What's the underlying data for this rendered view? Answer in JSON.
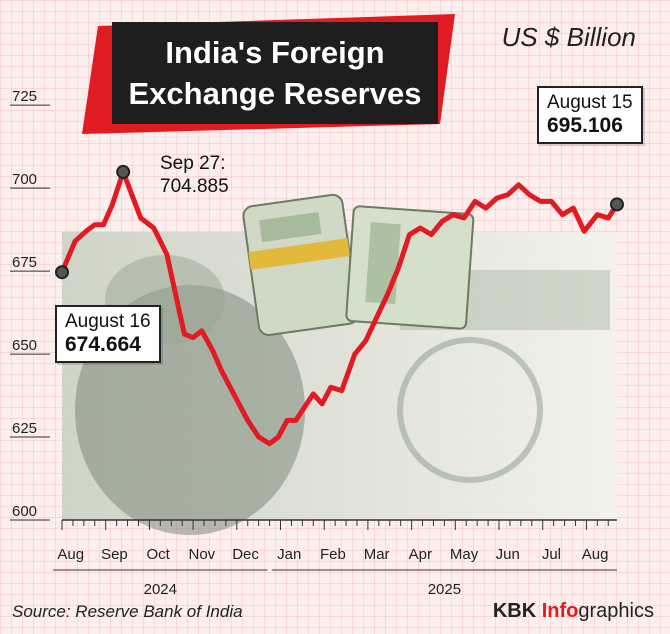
{
  "chart_data": {
    "type": "line",
    "title": "India's Foreign Exchange Reserves",
    "unit": "US $ Billion",
    "ylim": [
      600,
      735
    ],
    "yticks": [
      600,
      625,
      650,
      675,
      700,
      725
    ],
    "months": [
      "Aug",
      "Sep",
      "Oct",
      "Nov",
      "Dec",
      "Jan",
      "Feb",
      "Mar",
      "Apr",
      "May",
      "Jun",
      "Jul",
      "Aug"
    ],
    "years": [
      {
        "label": "2024",
        "month_start": 0,
        "month_end": 4
      },
      {
        "label": "2025",
        "month_start": 5,
        "month_end": 12
      }
    ],
    "series": [
      {
        "color": "#e11b22",
        "points": [
          {
            "x": 0.0,
            "y": 674.664
          },
          {
            "x": 0.3,
            "y": 684
          },
          {
            "x": 0.55,
            "y": 687
          },
          {
            "x": 0.75,
            "y": 689
          },
          {
            "x": 0.95,
            "y": 689
          },
          {
            "x": 1.15,
            "y": 695
          },
          {
            "x": 1.4,
            "y": 704.885
          },
          {
            "x": 1.6,
            "y": 698
          },
          {
            "x": 1.8,
            "y": 691
          },
          {
            "x": 2.1,
            "y": 688
          },
          {
            "x": 2.4,
            "y": 680
          },
          {
            "x": 2.6,
            "y": 668
          },
          {
            "x": 2.8,
            "y": 656
          },
          {
            "x": 3.0,
            "y": 655
          },
          {
            "x": 3.2,
            "y": 657
          },
          {
            "x": 3.45,
            "y": 651
          },
          {
            "x": 3.65,
            "y": 645
          },
          {
            "x": 3.85,
            "y": 640
          },
          {
            "x": 4.05,
            "y": 635
          },
          {
            "x": 4.25,
            "y": 630
          },
          {
            "x": 4.5,
            "y": 625
          },
          {
            "x": 4.75,
            "y": 623
          },
          {
            "x": 4.95,
            "y": 625
          },
          {
            "x": 5.15,
            "y": 630
          },
          {
            "x": 5.35,
            "y": 630
          },
          {
            "x": 5.55,
            "y": 634
          },
          {
            "x": 5.75,
            "y": 638
          },
          {
            "x": 5.95,
            "y": 635
          },
          {
            "x": 6.15,
            "y": 640
          },
          {
            "x": 6.4,
            "y": 639
          },
          {
            "x": 6.7,
            "y": 650
          },
          {
            "x": 6.95,
            "y": 654
          },
          {
            "x": 7.2,
            "y": 661
          },
          {
            "x": 7.45,
            "y": 668
          },
          {
            "x": 7.7,
            "y": 676
          },
          {
            "x": 7.95,
            "y": 686
          },
          {
            "x": 8.2,
            "y": 688
          },
          {
            "x": 8.45,
            "y": 686
          },
          {
            "x": 8.7,
            "y": 690
          },
          {
            "x": 8.95,
            "y": 692
          },
          {
            "x": 9.2,
            "y": 691
          },
          {
            "x": 9.45,
            "y": 696
          },
          {
            "x": 9.7,
            "y": 694
          },
          {
            "x": 9.95,
            "y": 697
          },
          {
            "x": 10.2,
            "y": 698
          },
          {
            "x": 10.45,
            "y": 701
          },
          {
            "x": 10.7,
            "y": 698
          },
          {
            "x": 10.95,
            "y": 696
          },
          {
            "x": 11.2,
            "y": 696
          },
          {
            "x": 11.45,
            "y": 692
          },
          {
            "x": 11.7,
            "y": 694
          },
          {
            "x": 11.95,
            "y": 687
          },
          {
            "x": 12.25,
            "y": 692
          },
          {
            "x": 12.5,
            "y": 691
          },
          {
            "x": 12.7,
            "y": 695.106
          }
        ]
      }
    ],
    "annotations": [
      {
        "label": "August 16",
        "value": "674.664"
      },
      {
        "label": "Sep 27:",
        "value": "704.885"
      },
      {
        "label": "August 15",
        "value": "695.106"
      }
    ],
    "grid": true
  },
  "footer": {
    "source": "Source: Reserve Bank of India",
    "brand_kbk": "KBK ",
    "brand_info": "Info",
    "brand_graphics": "graphics"
  }
}
